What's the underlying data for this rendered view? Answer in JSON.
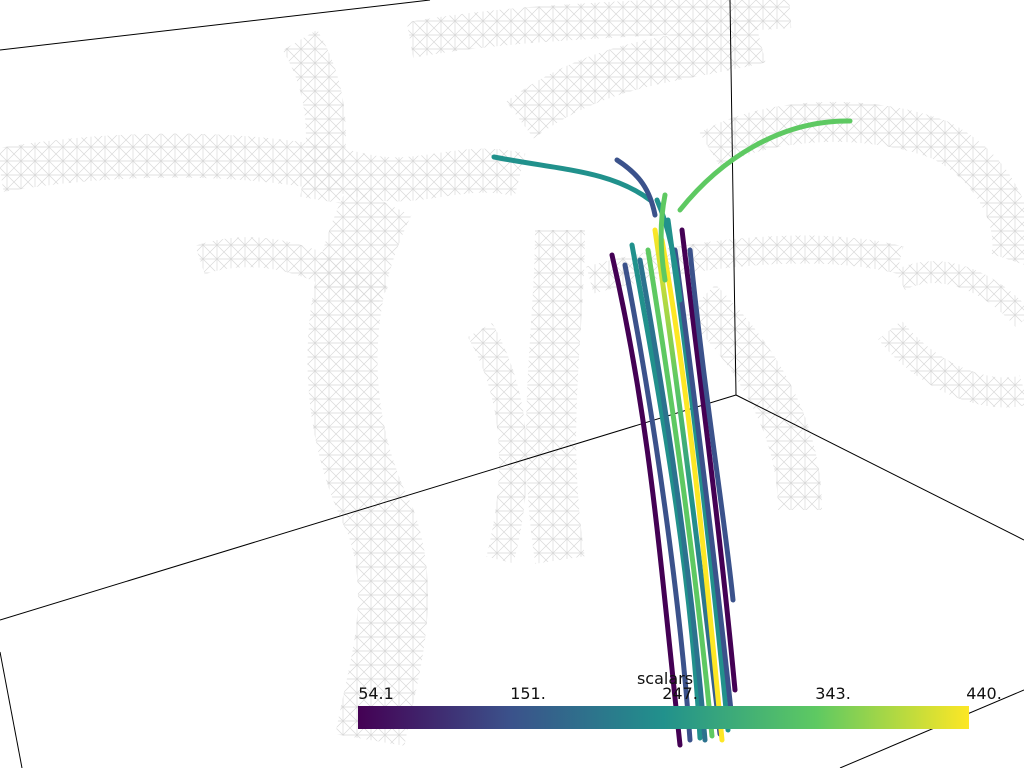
{
  "scalar_bar": {
    "title": "scalars",
    "colormap": "viridis",
    "range": [
      54.1,
      440.0
    ],
    "tick_labels": [
      "54.1",
      "151.",
      "247.",
      "343.",
      "440."
    ],
    "colors": [
      "#440154",
      "#3b528b",
      "#21918c",
      "#5ec962",
      "#fde725"
    ]
  },
  "scene": {
    "mesh_color": "#d9d9d9",
    "bounding_box_color": "#000000",
    "background": "#ffffff",
    "streamline_count": 18
  }
}
